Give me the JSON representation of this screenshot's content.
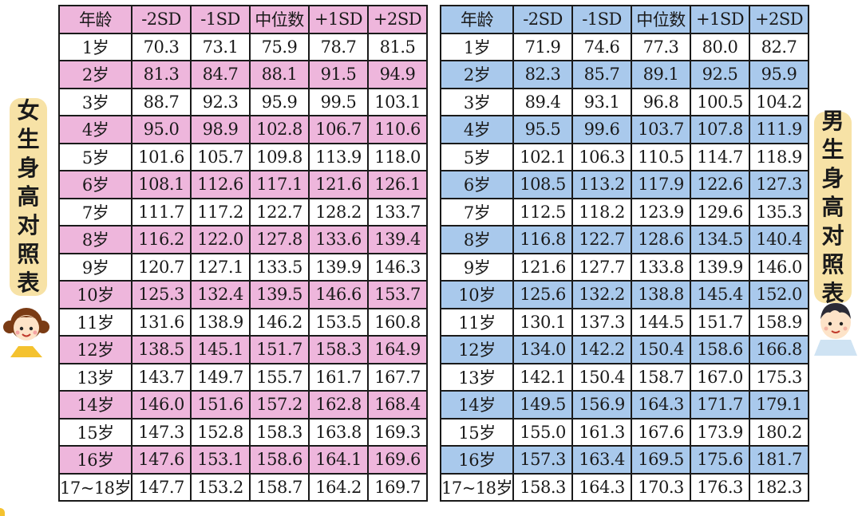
{
  "girls": {
    "label": "女生身高对照表",
    "header": [
      "年龄",
      "-2SD",
      "-1SD",
      "中位数",
      "+1SD",
      "+2SD"
    ],
    "rows": [
      [
        "1岁",
        "70.3",
        "73.1",
        "75.9",
        "78.7",
        "81.5"
      ],
      [
        "2岁",
        "81.3",
        "84.7",
        "88.1",
        "91.5",
        "94.9"
      ],
      [
        "3岁",
        "88.7",
        "92.3",
        "95.9",
        "99.5",
        "103.1"
      ],
      [
        "4岁",
        "95.0",
        "98.9",
        "102.8",
        "106.7",
        "110.6"
      ],
      [
        "5岁",
        "101.6",
        "105.7",
        "109.8",
        "113.9",
        "118.0"
      ],
      [
        "6岁",
        "108.1",
        "112.6",
        "117.1",
        "121.6",
        "126.1"
      ],
      [
        "7岁",
        "111.7",
        "117.2",
        "122.7",
        "128.2",
        "133.7"
      ],
      [
        "8岁",
        "116.2",
        "122.0",
        "127.8",
        "133.6",
        "139.4"
      ],
      [
        "9岁",
        "120.7",
        "127.1",
        "133.5",
        "139.9",
        "146.3"
      ],
      [
        "10岁",
        "125.3",
        "132.4",
        "139.5",
        "146.6",
        "153.7"
      ],
      [
        "11岁",
        "131.6",
        "138.9",
        "146.2",
        "153.5",
        "160.8"
      ],
      [
        "12岁",
        "138.5",
        "145.1",
        "151.7",
        "158.3",
        "164.9"
      ],
      [
        "13岁",
        "143.7",
        "149.7",
        "155.7",
        "161.7",
        "167.7"
      ],
      [
        "14岁",
        "146.0",
        "151.6",
        "157.2",
        "162.8",
        "168.4"
      ],
      [
        "15岁",
        "147.3",
        "152.8",
        "158.3",
        "163.8",
        "169.3"
      ],
      [
        "16岁",
        "147.6",
        "153.1",
        "158.6",
        "164.1",
        "169.6"
      ],
      [
        "17~18岁",
        "147.7",
        "153.2",
        "158.7",
        "164.2",
        "169.7"
      ]
    ]
  },
  "boys": {
    "label": "男生身高对照表",
    "header": [
      "年龄",
      "-2SD",
      "-1SD",
      "中位数",
      "+1SD",
      "+2SD"
    ],
    "rows": [
      [
        "1岁",
        "71.9",
        "74.6",
        "77.3",
        "80.0",
        "82.7"
      ],
      [
        "2岁",
        "82.3",
        "85.7",
        "89.1",
        "92.5",
        "95.9"
      ],
      [
        "3岁",
        "89.4",
        "93.1",
        "96.8",
        "100.5",
        "104.2"
      ],
      [
        "4岁",
        "95.5",
        "99.6",
        "103.7",
        "107.8",
        "111.9"
      ],
      [
        "5岁",
        "102.1",
        "106.3",
        "110.5",
        "114.7",
        "118.9"
      ],
      [
        "6岁",
        "108.5",
        "113.2",
        "117.9",
        "122.6",
        "127.3"
      ],
      [
        "7岁",
        "112.5",
        "118.2",
        "123.9",
        "129.6",
        "135.3"
      ],
      [
        "8岁",
        "116.8",
        "122.7",
        "128.6",
        "134.5",
        "140.4"
      ],
      [
        "9岁",
        "121.6",
        "127.7",
        "133.8",
        "139.9",
        "146.0"
      ],
      [
        "10岁",
        "125.6",
        "132.2",
        "138.8",
        "145.4",
        "152.0"
      ],
      [
        "11岁",
        "130.1",
        "137.3",
        "144.5",
        "151.7",
        "158.9"
      ],
      [
        "12岁",
        "134.0",
        "142.2",
        "150.4",
        "158.6",
        "166.8"
      ],
      [
        "13岁",
        "142.1",
        "150.4",
        "158.7",
        "167.0",
        "175.3"
      ],
      [
        "14岁",
        "149.5",
        "156.9",
        "164.3",
        "171.7",
        "179.1"
      ],
      [
        "15岁",
        "155.0",
        "161.3",
        "167.6",
        "173.9",
        "180.2"
      ],
      [
        "16岁",
        "157.3",
        "163.4",
        "169.5",
        "175.6",
        "181.7"
      ],
      [
        "17~18岁",
        "158.3",
        "164.3",
        "170.3",
        "176.3",
        "182.3"
      ]
    ]
  },
  "colors": {
    "girls_highlight": "#eeb6dc",
    "boys_highlight": "#a9c9ec",
    "label_background": "#f7e2a6"
  },
  "icons": {
    "girl": "girl-avatar-icon",
    "boy": "boy-avatar-icon"
  }
}
